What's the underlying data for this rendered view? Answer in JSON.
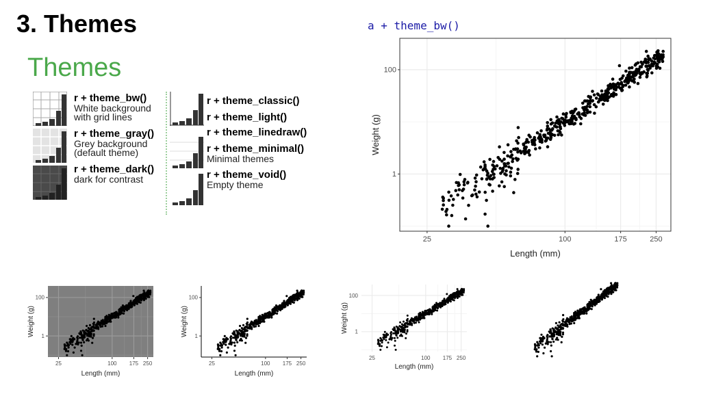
{
  "slide": {
    "title": "3. Themes",
    "code": "a + theme_bw()"
  },
  "cheatsheet": {
    "heading": "Themes",
    "entries": [
      {
        "fn": "r + theme_bw()",
        "desc": [
          "White background",
          "with grid lines"
        ]
      },
      {
        "fn": "r + theme_gray()",
        "desc": [
          "Grey background",
          "(default theme)"
        ]
      },
      {
        "fn": "r + theme_dark()",
        "desc": [
          "dark for contrast"
        ]
      },
      {
        "fn": "r + theme_classic()",
        "desc": []
      },
      {
        "fn": "r + theme_light()",
        "desc": []
      },
      {
        "fn": "r + theme_linedraw()",
        "desc": []
      },
      {
        "fn": "r + theme_minimal()",
        "desc": [
          "Minimal themes"
        ]
      },
      {
        "fn": "r + theme_void()",
        "desc": [
          "Empty theme"
        ]
      }
    ]
  },
  "chart_data": [
    {
      "type": "scatter",
      "theme": "bw",
      "xlabel": "Length (mm)",
      "ylabel": "Weight (g)",
      "x_scale": "log10",
      "y_scale": "log10",
      "x_ticks": [
        25,
        100,
        175,
        250
      ],
      "y_ticks": [
        1,
        100
      ],
      "xlim": [
        19,
        290
      ],
      "ylim": [
        0.08,
        400
      ],
      "grid": true,
      "trend": "Weight ≈ 1.0e-5 × Length^3 (approximate, dense cloud of about 500 points)",
      "sample_points": [
        {
          "x": 28,
          "y": 0.1
        },
        {
          "x": 30,
          "y": 0.2
        },
        {
          "x": 35,
          "y": 0.1
        },
        {
          "x": 38,
          "y": 0.5
        },
        {
          "x": 40,
          "y": 0.8
        },
        {
          "x": 45,
          "y": 0.6
        },
        {
          "x": 50,
          "y": 0.1
        },
        {
          "x": 55,
          "y": 1.5
        },
        {
          "x": 60,
          "y": 2
        },
        {
          "x": 70,
          "y": 3
        },
        {
          "x": 80,
          "y": 5
        },
        {
          "x": 90,
          "y": 8
        },
        {
          "x": 100,
          "y": 10
        },
        {
          "x": 120,
          "y": 18
        },
        {
          "x": 140,
          "y": 28
        },
        {
          "x": 160,
          "y": 42
        },
        {
          "x": 180,
          "y": 60
        },
        {
          "x": 200,
          "y": 80
        },
        {
          "x": 230,
          "y": 120
        },
        {
          "x": 260,
          "y": 180
        }
      ]
    },
    {
      "type": "scatter",
      "theme": "dark",
      "xlabel": "Length (mm)",
      "ylabel": "Weight (g)",
      "x_ticks": [
        25,
        100,
        175,
        250
      ],
      "y_ticks": [
        1,
        100
      ],
      "grid": true
    },
    {
      "type": "scatter",
      "theme": "classic",
      "xlabel": "Length (mm)",
      "ylabel": "Weight (g)",
      "x_ticks": [
        25,
        100,
        175,
        250
      ],
      "y_ticks": [
        1,
        100
      ],
      "grid": false
    },
    {
      "type": "scatter",
      "theme": "minimal",
      "xlabel": "Length (mm)",
      "ylabel": "Weight (g)",
      "x_ticks": [
        25,
        100,
        175,
        250
      ],
      "y_ticks": [
        1,
        100
      ],
      "grid": true
    },
    {
      "type": "scatter",
      "theme": "void",
      "xlabel": "",
      "ylabel": "",
      "x_ticks": [],
      "y_ticks": [],
      "grid": false
    }
  ]
}
